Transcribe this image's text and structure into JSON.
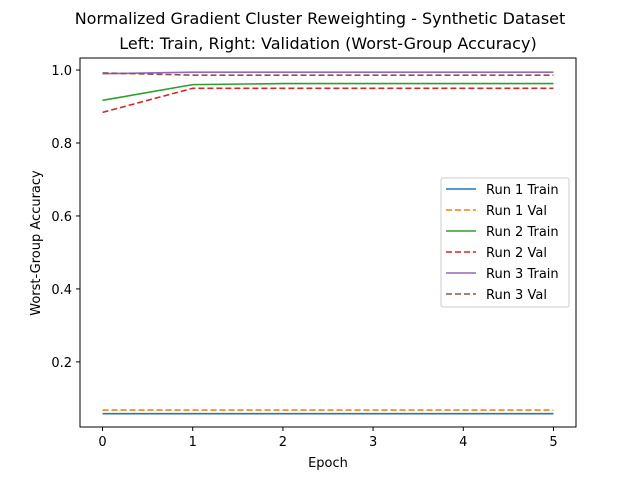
{
  "chart_data": {
    "type": "line",
    "title": "Normalized Gradient Cluster Reweighting - Synthetic Dataset",
    "subtitle": "Left: Train, Right: Validation (Worst-Group Accuracy)",
    "xlabel": "Epoch",
    "ylabel": "Worst-Group Accuracy",
    "x": [
      0,
      1,
      2,
      3,
      4,
      5
    ],
    "xlim": [
      -0.25,
      5.25
    ],
    "ylim": [
      0.0215,
      1.033
    ],
    "xticks": [
      0,
      1,
      2,
      3,
      4,
      5
    ],
    "yticks": [
      0.2,
      0.4,
      0.6,
      0.8,
      1.0
    ],
    "ytick_labels": [
      "0.2",
      "0.4",
      "0.6",
      "0.8",
      "1.0"
    ],
    "grid": false,
    "legend_position": "center-right",
    "series": [
      {
        "name": "Run 1 Train",
        "color": "#1f77b4",
        "dashed": false,
        "values": [
          0.058,
          0.058,
          0.058,
          0.058,
          0.058,
          0.058
        ]
      },
      {
        "name": "Run 1 Val",
        "color": "#ff7f0e",
        "dashed": true,
        "values": [
          0.068,
          0.068,
          0.068,
          0.068,
          0.068,
          0.068
        ]
      },
      {
        "name": "Run 2 Train",
        "color": "#2ca02c",
        "dashed": false,
        "values": [
          0.917,
          0.96,
          0.963,
          0.963,
          0.963,
          0.963
        ]
      },
      {
        "name": "Run 2 Val",
        "color": "#d62728",
        "dashed": true,
        "values": [
          0.884,
          0.95,
          0.95,
          0.95,
          0.95,
          0.95
        ]
      },
      {
        "name": "Run 3 Train",
        "color": "#9467bd",
        "dashed": false,
        "values": [
          0.99,
          0.994,
          0.994,
          0.994,
          0.994,
          0.994
        ]
      },
      {
        "name": "Run 3 Val",
        "color": "#8c564b",
        "dashed": true,
        "values": [
          0.992,
          0.986,
          0.986,
          0.986,
          0.986,
          0.986
        ]
      }
    ]
  }
}
